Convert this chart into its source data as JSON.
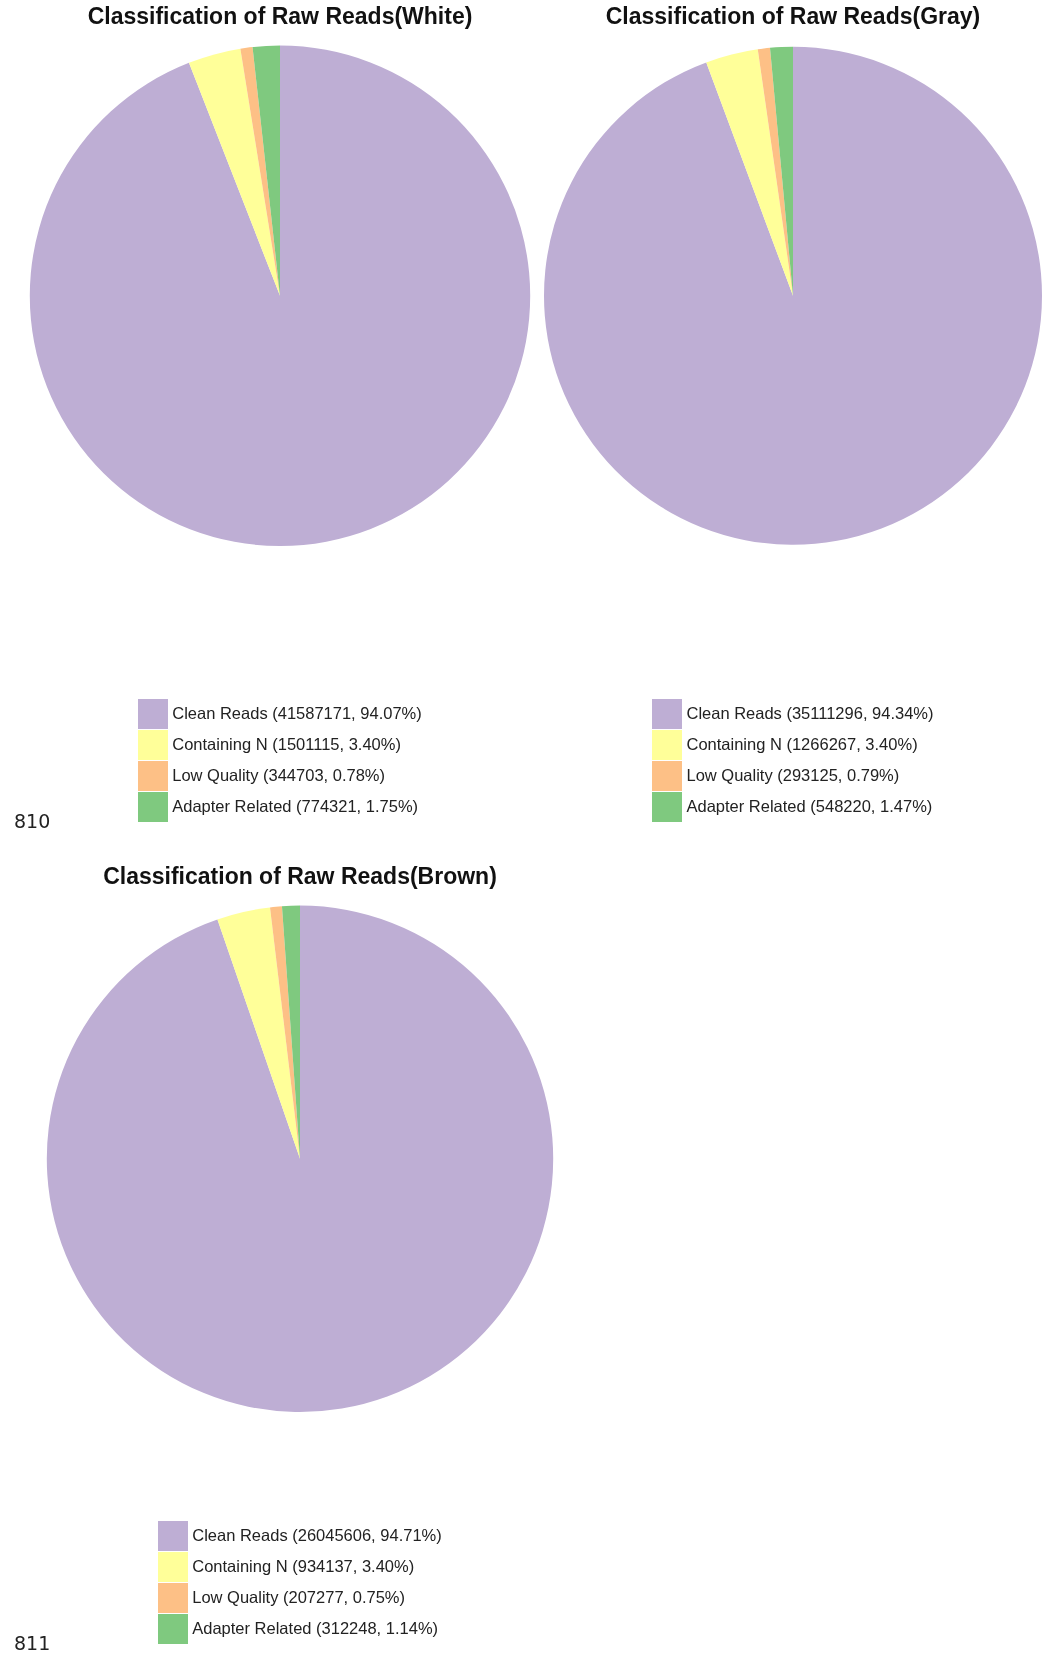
{
  "chart_data": [
    {
      "type": "pie",
      "title": "Classification of Raw Reads(White)",
      "categories": [
        "Clean Reads (41587171, 94.07%)",
        "Containing N (1501115, 3.40%)",
        "Low Quality (344703, 0.78%)",
        "Adapter Related (774321, 1.75%)"
      ],
      "values": [
        41587171,
        1501115,
        344703,
        774321
      ],
      "colors": [
        "#beaed4",
        "#ffff99",
        "#fdc086",
        "#7fc97f"
      ],
      "legend": "bottom",
      "annotations": [
        "810"
      ]
    },
    {
      "type": "pie",
      "title": "Classification of Raw Reads(Gray)",
      "categories": [
        "Clean Reads (35111296, 94.34%)",
        "Containing N (1266267, 3.40%)",
        "Low Quality (293125, 0.79%)",
        "Adapter Related (548220, 1.47%)"
      ],
      "values": [
        35111296,
        1266267,
        293125,
        548220
      ],
      "colors": [
        "#beaed4",
        "#ffff99",
        "#fdc086",
        "#7fc97f"
      ],
      "legend": "bottom"
    },
    {
      "type": "pie",
      "title": "Classification of Raw Reads(Brown)",
      "categories": [
        "Clean Reads (26045606, 94.71%)",
        "Containing N (934137, 3.40%)",
        "Low Quality (207277, 0.75%)",
        "Adapter Related (312248, 1.14%)"
      ],
      "values": [
        26045606,
        934137,
        207277,
        312248
      ],
      "colors": [
        "#beaed4",
        "#ffff99",
        "#fdc086",
        "#7fc97f"
      ],
      "legend": "bottom",
      "annotations": [
        "811"
      ]
    }
  ]
}
